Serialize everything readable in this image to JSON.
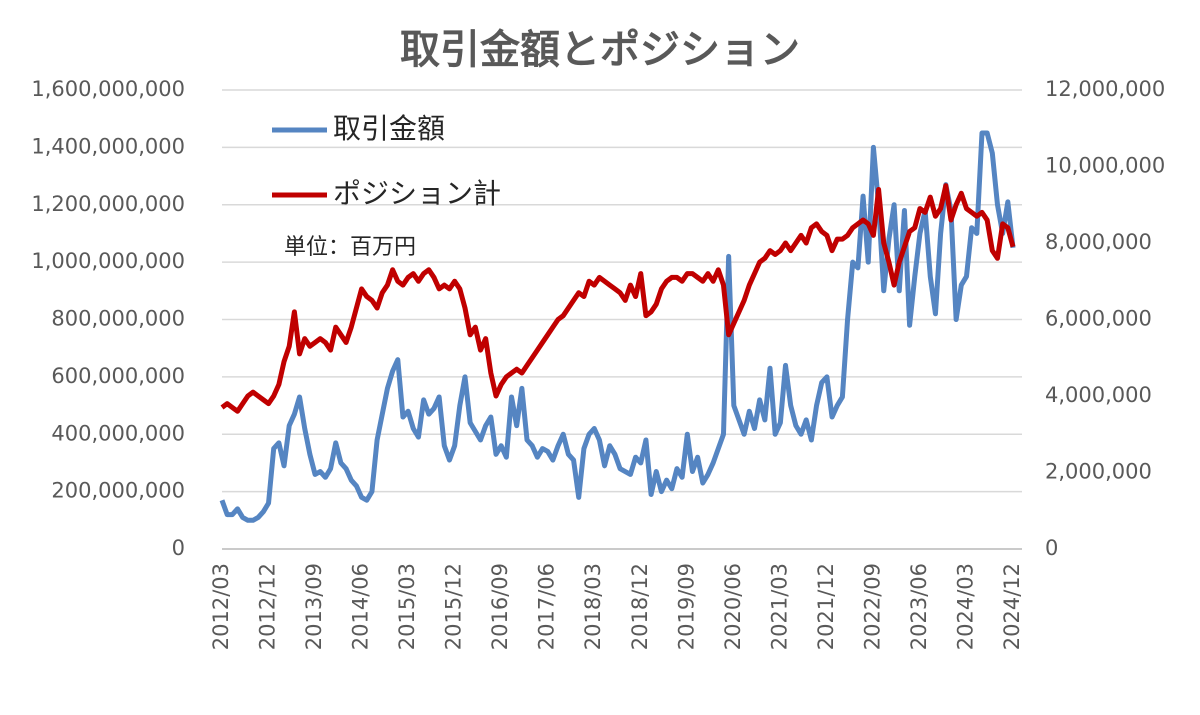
{
  "chart_data": {
    "type": "line",
    "title": "取引金額とポジション",
    "annotation": "単位：百万円",
    "categories": [
      "2012/03",
      null,
      null,
      null,
      null,
      null,
      null,
      null,
      null,
      "2012/12",
      null,
      null,
      null,
      null,
      null,
      null,
      null,
      null,
      "2013/09",
      null,
      null,
      null,
      null,
      null,
      null,
      null,
      null,
      "2014/06",
      null,
      null,
      null,
      null,
      null,
      null,
      null,
      null,
      "2015/03",
      null,
      null,
      null,
      null,
      null,
      null,
      null,
      null,
      "2015/12",
      null,
      null,
      null,
      null,
      null,
      null,
      null,
      null,
      "2016/09",
      null,
      null,
      null,
      null,
      null,
      null,
      null,
      null,
      "2017/06",
      null,
      null,
      null,
      null,
      null,
      null,
      null,
      null,
      "2018/03",
      null,
      null,
      null,
      null,
      null,
      null,
      null,
      null,
      "2018/12",
      null,
      null,
      null,
      null,
      null,
      null,
      null,
      null,
      "2019/09",
      null,
      null,
      null,
      null,
      null,
      null,
      null,
      null,
      "2020/06",
      null,
      null,
      null,
      null,
      null,
      null,
      null,
      null,
      "2021/03",
      null,
      null,
      null,
      null,
      null,
      null,
      null,
      null,
      "2021/12",
      null,
      null,
      null,
      null,
      null,
      null,
      null,
      null,
      "2022/09",
      null,
      null,
      null,
      null,
      null,
      null,
      null,
      null,
      "2023/06",
      null,
      null,
      null,
      null,
      null,
      null,
      null,
      null,
      "2024/03",
      null,
      null,
      null,
      null,
      null,
      null,
      null,
      null,
      "2024/12"
    ],
    "series": [
      {
        "name": "取引金額",
        "color": "#5585c2",
        "values": [
          170000000,
          120000000,
          120000000,
          140000000,
          110000000,
          100000000,
          100000000,
          110000000,
          130000000,
          160000000,
          350000000,
          370000000,
          290000000,
          430000000,
          470000000,
          530000000,
          420000000,
          330000000,
          260000000,
          270000000,
          250000000,
          280000000,
          370000000,
          300000000,
          280000000,
          240000000,
          220000000,
          180000000,
          170000000,
          200000000,
          380000000,
          470000000,
          560000000,
          620000000,
          660000000,
          460000000,
          480000000,
          420000000,
          390000000,
          520000000,
          470000000,
          490000000,
          530000000,
          360000000,
          310000000,
          360000000,
          500000000,
          600000000,
          440000000,
          410000000,
          380000000,
          430000000,
          460000000,
          330000000,
          360000000,
          320000000,
          530000000,
          430000000,
          560000000,
          380000000,
          360000000,
          320000000,
          350000000,
          340000000,
          310000000,
          360000000,
          400000000,
          330000000,
          310000000,
          180000000,
          350000000,
          400000000,
          420000000,
          380000000,
          290000000,
          360000000,
          330000000,
          280000000,
          270000000,
          260000000,
          320000000,
          300000000,
          380000000,
          190000000,
          270000000,
          200000000,
          240000000,
          210000000,
          280000000,
          250000000,
          400000000,
          270000000,
          320000000,
          230000000,
          260000000,
          300000000,
          350000000,
          400000000,
          1020000000,
          500000000,
          450000000,
          400000000,
          480000000,
          420000000,
          520000000,
          450000000,
          630000000,
          400000000,
          440000000,
          640000000,
          500000000,
          430000000,
          400000000,
          450000000,
          380000000,
          500000000,
          580000000,
          600000000,
          460000000,
          500000000,
          530000000,
          800000000,
          1000000000,
          980000000,
          1230000000,
          1000000000,
          1400000000,
          1200000000,
          900000000,
          1080000000,
          1200000000,
          900000000,
          1180000000,
          780000000,
          950000000,
          1100000000,
          1180000000,
          950000000,
          820000000,
          1100000000,
          1270000000,
          1180000000,
          800000000,
          920000000,
          950000000,
          1120000000,
          1100000000,
          1450000000,
          1450000000,
          1380000000,
          1200000000,
          1100000000,
          1210000000,
          1050000000
        ]
      },
      {
        "name": "ポジション計",
        "color": "#c00000",
        "axis": "y2",
        "values": [
          3700000,
          3800000,
          3700000,
          3600000,
          3800000,
          4000000,
          4100000,
          4000000,
          3900000,
          3800000,
          4000000,
          4300000,
          4900000,
          5300000,
          6200000,
          5100000,
          5500000,
          5300000,
          5400000,
          5500000,
          5400000,
          5200000,
          5800000,
          5600000,
          5400000,
          5800000,
          6300000,
          6800000,
          6600000,
          6500000,
          6300000,
          6700000,
          6900000,
          7300000,
          7000000,
          6900000,
          7100000,
          7200000,
          7000000,
          7200000,
          7300000,
          7100000,
          6800000,
          6900000,
          6800000,
          7000000,
          6800000,
          6300000,
          5600000,
          5800000,
          5200000,
          5500000,
          4600000,
          4000000,
          4300000,
          4500000,
          4600000,
          4700000,
          4600000,
          4800000,
          5000000,
          5200000,
          5400000,
          5600000,
          5800000,
          6000000,
          6100000,
          6300000,
          6500000,
          6700000,
          6600000,
          7000000,
          6900000,
          7100000,
          7000000,
          6900000,
          6800000,
          6700000,
          6500000,
          6900000,
          6600000,
          7200000,
          6100000,
          6200000,
          6400000,
          6800000,
          7000000,
          7100000,
          7100000,
          7000000,
          7200000,
          7200000,
          7100000,
          7000000,
          7200000,
          7000000,
          7300000,
          6900000,
          5600000,
          5900000,
          6200000,
          6500000,
          6900000,
          7200000,
          7500000,
          7600000,
          7800000,
          7700000,
          7800000,
          8000000,
          7800000,
          8000000,
          8200000,
          8000000,
          8400000,
          8500000,
          8300000,
          8200000,
          7800000,
          8100000,
          8100000,
          8200000,
          8400000,
          8500000,
          8600000,
          8500000,
          8200000,
          9400000,
          8000000,
          7500000,
          6900000,
          7500000,
          7900000,
          8300000,
          8400000,
          8900000,
          8800000,
          9200000,
          8700000,
          8900000,
          9500000,
          8600000,
          9000000,
          9300000,
          8900000,
          8800000,
          8700000,
          8800000,
          8600000,
          7800000,
          7600000,
          8500000,
          8400000,
          7900000
        ]
      }
    ],
    "ylim": [
      0,
      1600000000
    ],
    "yticks": [
      0,
      {
        "value": 200000000,
        "label": "200,000,000"
      },
      {
        "value": 400000000,
        "label": "400,000,000"
      },
      {
        "value": 600000000,
        "label": "600,000,000"
      },
      {
        "value": 800000000,
        "label": "800,000,000"
      },
      {
        "value": 1000000000,
        "label": "1,000,000,000"
      },
      {
        "value": 1200000000,
        "label": "1,200,000,000"
      },
      {
        "value": 1400000000,
        "label": "1,400,000,000"
      },
      {
        "value": 1600000000,
        "label": "1,600,000,000"
      }
    ],
    "y2lim": [
      0,
      12000000
    ],
    "y2ticks": [
      0,
      {
        "value": 2000000,
        "label": "2,000,000"
      },
      {
        "value": 4000000,
        "label": "4,000,000"
      },
      {
        "value": 6000000,
        "label": "6,000,000"
      },
      {
        "value": 8000000,
        "label": "8,000,000"
      },
      {
        "value": 10000000,
        "label": "10,000,000"
      },
      {
        "value": 12000000,
        "label": "12,000,000"
      }
    ],
    "grid": true,
    "legend": "top-left"
  }
}
